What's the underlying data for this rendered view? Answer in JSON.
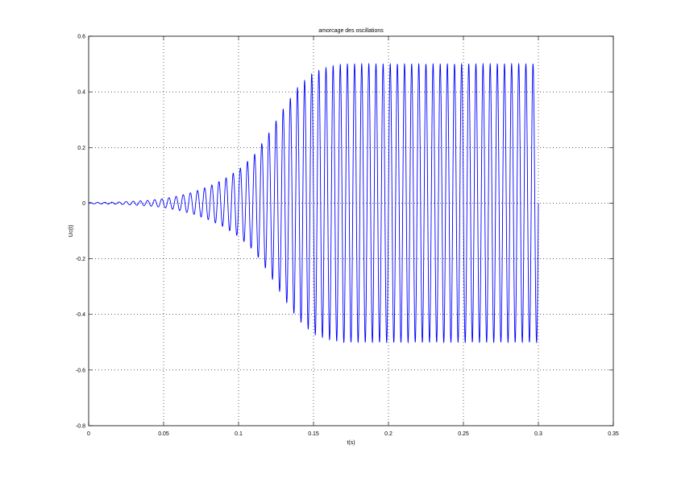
{
  "chart_data": {
    "type": "line",
    "title": "amorcage des oscillations",
    "xlabel": "t(s)",
    "ylabel": "Uc(t)",
    "xlim": [
      0,
      0.35
    ],
    "ylim": [
      -0.8,
      0.6
    ],
    "xticks": [
      0,
      0.05,
      0.1,
      0.15,
      0.2,
      0.25,
      0.3,
      0.35
    ],
    "xtick_labels": [
      "0",
      "0.05",
      "0.1",
      "0.15",
      "0.2",
      "0.25",
      "0.3",
      "0.35"
    ],
    "yticks": [
      -0.8,
      -0.6,
      -0.4,
      -0.2,
      0,
      0.2,
      0.4,
      0.6
    ],
    "ytick_labels": [
      "-0.8",
      "-0.6",
      "-0.4",
      "-0.2",
      "0",
      "0.2",
      "0.4",
      "0.6"
    ],
    "grid": true,
    "line_color": "#0000ff",
    "series": [
      {
        "signal": "growing sinusoidal oscillation saturating to a steady amplitude",
        "t_start": 0,
        "t_end": 0.3,
        "frequency_hz": 210,
        "envelope": {
          "t": [
            0,
            0.02,
            0.04,
            0.05,
            0.06,
            0.07,
            0.08,
            0.09,
            0.1,
            0.11,
            0.12,
            0.13,
            0.14,
            0.15,
            0.16,
            0.17,
            0.3
          ],
          "amplitude": [
            0.002,
            0.004,
            0.01,
            0.016,
            0.026,
            0.04,
            0.06,
            0.085,
            0.12,
            0.17,
            0.25,
            0.34,
            0.42,
            0.47,
            0.49,
            0.5,
            0.5
          ]
        }
      }
    ]
  }
}
